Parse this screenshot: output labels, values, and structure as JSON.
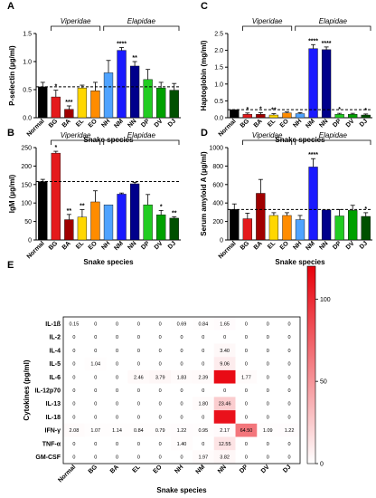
{
  "panel_letters": [
    "A",
    "B",
    "C",
    "D",
    "E"
  ],
  "chart_data": [
    {
      "panel": "A",
      "type": "bar",
      "ylabel": "P-selectin (µg/ml)",
      "xlabel": "Snake species",
      "categories": [
        "Normal",
        "BG",
        "BA",
        "EL",
        "EO",
        "NH",
        "NM",
        "NN",
        "DP",
        "DV",
        "DJ"
      ],
      "values": [
        0.55,
        0.37,
        0.15,
        0.53,
        0.48,
        0.8,
        1.2,
        0.92,
        0.68,
        0.53,
        0.49
      ],
      "errors": [
        0.08,
        0.12,
        0.06,
        0.05,
        0.15,
        0.22,
        0.05,
        0.08,
        0.18,
        0.1,
        0.12
      ],
      "stars": [
        "",
        "*",
        "***",
        "",
        "",
        "",
        "****",
        "**",
        "",
        "",
        ""
      ],
      "ylim": [
        0,
        1.5
      ],
      "yticks": [
        "0.0",
        "0.5",
        "1.0",
        "1.5"
      ],
      "ref_line": 0.55,
      "groups": [
        {
          "label": "Viperidae",
          "from": 1,
          "to": 4
        },
        {
          "label": "Elapidae",
          "from": 5,
          "to": 10
        }
      ]
    },
    {
      "panel": "B",
      "type": "bar",
      "ylabel": "IgM (µg/ml)",
      "xlabel": "Snake species",
      "categories": [
        "Normal",
        "BG",
        "BA",
        "EL",
        "EO",
        "NH",
        "NM",
        "NN",
        "DP",
        "DV",
        "DJ"
      ],
      "values": [
        158,
        235,
        55,
        62,
        103,
        95,
        124,
        152,
        95,
        68,
        59
      ],
      "errors": [
        6,
        5,
        14,
        20,
        30,
        0,
        3,
        4,
        28,
        12,
        4
      ],
      "stars": [
        "",
        "*",
        "**",
        "**",
        "",
        "",
        "",
        "",
        "",
        "*",
        "**"
      ],
      "ylim": [
        0,
        250
      ],
      "yticks": [
        "0",
        "50",
        "100",
        "150",
        "200",
        "250"
      ],
      "ref_line": 158,
      "groups": [
        {
          "label": "Viperidae",
          "from": 1,
          "to": 4
        },
        {
          "label": "Elapidae",
          "from": 5,
          "to": 10
        }
      ]
    },
    {
      "panel": "C",
      "type": "bar",
      "ylabel": "Haptoglobin (mg/ml)",
      "xlabel": "Snake species",
      "categories": [
        "Normal",
        "BG",
        "BA",
        "EL",
        "EO",
        "NH",
        "NM",
        "NN",
        "DP",
        "DV",
        "DJ"
      ],
      "values": [
        0.24,
        0.1,
        0.1,
        0.08,
        0.14,
        0.12,
        2.05,
        2.02,
        0.1,
        0.1,
        0.08
      ],
      "errors": [
        0,
        0.04,
        0.05,
        0.04,
        0.03,
        0.03,
        0.12,
        0.08,
        0.03,
        0.03,
        0.03
      ],
      "stars": [
        "",
        "*",
        "*",
        "**",
        "",
        "",
        "****",
        "****",
        "*",
        "",
        "*"
      ],
      "ylim": [
        0,
        2.5
      ],
      "yticks": [
        "0.0",
        "0.5",
        "1.0",
        "1.5",
        "2.0",
        "2.5"
      ],
      "ref_line": 0.24,
      "groups": [
        {
          "label": "Viperidae",
          "from": 1,
          "to": 4
        },
        {
          "label": "Elapidae",
          "from": 5,
          "to": 10
        }
      ]
    },
    {
      "panel": "D",
      "type": "bar",
      "ylabel": "Serum amyloid A (µg/ml)",
      "xlabel": "Snake species",
      "categories": [
        "Normal",
        "BG",
        "BA",
        "EL",
        "EO",
        "NH",
        "NM",
        "NN",
        "DP",
        "DV",
        "DJ"
      ],
      "values": [
        330,
        230,
        505,
        265,
        265,
        220,
        790,
        325,
        260,
        320,
        255
      ],
      "errors": [
        60,
        60,
        150,
        30,
        30,
        45,
        90,
        0,
        70,
        55,
        40
      ],
      "stars": [
        "",
        "",
        "",
        "",
        "",
        "",
        "****",
        "",
        "",
        "",
        "*"
      ],
      "ylim": [
        0,
        1000
      ],
      "yticks": [
        "0",
        "200",
        "400",
        "600",
        "800",
        "1000"
      ],
      "ref_line": 330,
      "groups": [
        {
          "label": "Viperidae",
          "from": 1,
          "to": 4
        },
        {
          "label": "Elapidae",
          "from": 5,
          "to": 10
        }
      ]
    },
    {
      "panel": "E",
      "type": "heatmap",
      "ylabel": "Cytokines (pg/ml)",
      "xlabel": "Snake species",
      "columns": [
        "Normal",
        "BG",
        "BA",
        "EL",
        "EO",
        "NH",
        "NM",
        "NN",
        "DP",
        "DV",
        "DJ"
      ],
      "rows": [
        "IL-1ß",
        "IL-2",
        "IL-4",
        "IL-5",
        "IL-6",
        "IL-12p70",
        "IL-13",
        "IL-18",
        "IFN-γ",
        "TNF-α",
        "GM-CSF"
      ],
      "cells": [
        [
          "0.15",
          "0",
          "0",
          "0",
          "0",
          "0.69",
          "0.84",
          "1.65",
          "0",
          "0",
          "0"
        ],
        [
          "0",
          "0",
          "0",
          "0",
          "0",
          "0",
          "0",
          "0",
          "0",
          "0",
          "0"
        ],
        [
          "0",
          "0",
          "0",
          "0",
          "0",
          "0",
          "0",
          "3.40",
          "0",
          "0",
          "0"
        ],
        [
          "0",
          "1.04",
          "0",
          "0",
          "0",
          "0",
          "0",
          "9.06",
          "0",
          "0",
          "0"
        ],
        [
          "0",
          "0",
          "0",
          "2.46",
          "3.79",
          "1.83",
          "2.39",
          "",
          "1.77",
          "0",
          "0"
        ],
        [
          "0",
          "0",
          "0",
          "0",
          "0",
          "0",
          "0",
          "0",
          "0",
          "0",
          "0"
        ],
        [
          "0",
          "0",
          "0",
          "0",
          "0",
          "0",
          "1.80",
          "23.46",
          "0",
          "0",
          "0"
        ],
        [
          "0",
          "0",
          "0",
          "0",
          "0",
          "0",
          "0",
          "",
          "0",
          "0",
          "0"
        ],
        [
          "2.08",
          "1.07",
          "1.14",
          "0.84",
          "0.79",
          "1.22",
          "0.95",
          "2.17",
          "64.50",
          "1.09",
          "1.22"
        ],
        [
          "0",
          "0",
          "0",
          "0",
          "0",
          "1.40",
          "0",
          "12.55",
          "0",
          "0",
          "0"
        ],
        [
          "0",
          "0",
          "0",
          "0",
          "0",
          "0",
          "1.97",
          "3.82",
          "0",
          "0",
          "0"
        ]
      ],
      "intensity": [
        [
          0.15,
          0,
          0,
          0,
          0,
          0.69,
          0.84,
          1.65,
          0,
          0,
          0
        ],
        [
          0,
          0,
          0,
          0,
          0,
          0,
          0,
          0,
          0,
          0,
          0
        ],
        [
          0,
          0,
          0,
          0,
          0,
          0,
          0,
          3.4,
          0,
          0,
          0
        ],
        [
          0,
          1.04,
          0,
          0,
          0,
          0,
          0,
          9.06,
          0,
          0,
          0
        ],
        [
          0,
          0,
          0,
          2.46,
          3.79,
          1.83,
          2.39,
          115,
          1.77,
          0,
          0
        ],
        [
          0,
          0,
          0,
          0,
          0,
          0,
          0,
          0,
          0,
          0,
          0
        ],
        [
          0,
          0,
          0,
          0,
          0,
          0,
          1.8,
          23.46,
          0,
          0,
          0
        ],
        [
          0,
          0,
          0,
          0,
          0,
          0,
          0,
          112,
          0,
          0,
          0
        ],
        [
          2.08,
          1.07,
          1.14,
          0.84,
          0.79,
          1.22,
          0.95,
          2.17,
          64.5,
          1.09,
          1.22
        ],
        [
          0,
          0,
          0,
          0,
          0,
          1.4,
          0,
          12.55,
          0,
          0,
          0
        ],
        [
          0,
          0,
          0,
          0,
          0,
          0,
          1.97,
          3.82,
          0,
          0,
          0
        ]
      ],
      "colorbar": {
        "min": 0,
        "max": 120,
        "ticks": [
          "0",
          "50",
          "100"
        ],
        "ticks_values": [
          0,
          50,
          100
        ],
        "low_color": "#ffffff",
        "high_color": "#e8000b"
      }
    }
  ],
  "bar_colors": [
    "#000000",
    "#e41a1c",
    "#a00000",
    "#ffd700",
    "#ff8c00",
    "#4fa3ff",
    "#1a1aff",
    "#00008b",
    "#22cc22",
    "#00a000",
    "#005000"
  ]
}
